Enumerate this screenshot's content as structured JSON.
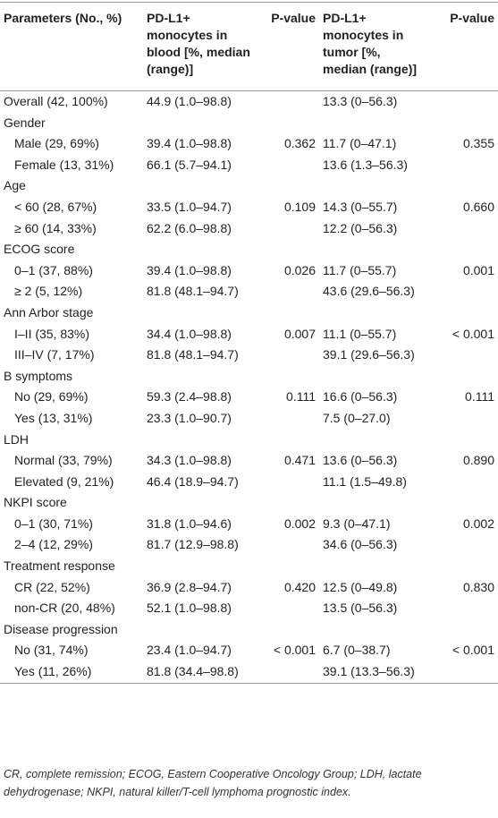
{
  "table": {
    "header": [
      "Parameters (No., %)",
      "PD-L1+ monocytes in blood [%, median (range)]",
      "P-value",
      "PD-L1+ monocytes in tumor [%, median (range)]",
      "P-value"
    ],
    "rows": [
      [
        "Overall (42, 100%)",
        "44.9 (1.0–98.8)",
        null,
        "13.3 (0–56.3)",
        null
      ],
      [
        "Gender"
      ],
      [
        "Male (29, 69%)",
        "39.4 (1.0–98.8)",
        "0.362",
        "11.7 (0–47.1)",
        "0.355"
      ],
      [
        "Female (13, 31%)",
        "66.1 (5.7–94.1)",
        null,
        "13.6 (1.3–56.3)",
        null
      ],
      [
        "Age"
      ],
      [
        "< 60 (28, 67%)",
        "33.5 (1.0–94.7)",
        "0.109",
        "14.3 (0–55.7)",
        "0.660"
      ],
      [
        "≥ 60 (14, 33%)",
        "62.2 (6.0–98.8)",
        null,
        "12.2 (0–56.3)",
        null
      ],
      [
        "ECOG score"
      ],
      [
        "0–1 (37, 88%)",
        "39.4 (1.0–98.8)",
        "0.026",
        "11.7 (0–55.7)",
        "0.001"
      ],
      [
        "≥ 2 (5, 12%)",
        "81.8 (48.1–94.7)",
        null,
        "43.6 (29.6–56.3)",
        null
      ],
      [
        "Ann Arbor stage"
      ],
      [
        "I–II (35, 83%)",
        "34.4 (1.0–98.8)",
        "0.007",
        "11.1 (0–55.7)",
        "< 0.001"
      ],
      [
        "III–IV (7, 17%)",
        "81.8 (48.1–94.7)",
        null,
        "39.1 (29.6–56.3)",
        null
      ],
      [
        "B symptoms"
      ],
      [
        "No (29, 69%)",
        "59.3 (2.4–98.8)",
        "0.111",
        "16.6 (0–56.3)",
        "0.111"
      ],
      [
        "Yes (13, 31%)",
        "23.3 (1.0–90.7)",
        null,
        "7.5 (0–27.0)",
        null
      ],
      [
        "LDH"
      ],
      [
        "Normal (33, 79%)",
        "34.3 (1.0–98.8)",
        "0.471",
        "13.6 (0–56.3)",
        "0.890"
      ],
      [
        "Elevated (9, 21%)",
        "46.4 (18.9–94.7)",
        null,
        "11.1 (1.5–49.8)",
        null
      ],
      [
        "NKPI score"
      ],
      [
        "0–1 (30, 71%)",
        "31.8 (1.0–94.6)",
        "0.002",
        "9.3 (0–47.1)",
        "0.002"
      ],
      [
        "2–4 (12, 29%)",
        "81.7 (12.9–98.8)",
        null,
        "34.6 (0–56.3)",
        null
      ],
      [
        "Treatment response"
      ],
      [
        "CR (22, 52%)",
        "36.9 (2.8–94.7)",
        "0.420",
        "12.5 (0–49.8)",
        "0.830"
      ],
      [
        "non-CR (20, 48%)",
        "52.1 (1.0–98.8)",
        null,
        "13.5 (0–56.3)",
        null
      ],
      [
        "Disease progression"
      ],
      [
        "No (31, 74%)",
        "23.4 (1.0–94.7)",
        "< 0.001",
        "6.7 (0–38.7)",
        "< 0.001"
      ],
      [
        "Yes (11, 26%)",
        "81.8 (34.4–98.8)",
        null,
        "39.1 (13.3–56.3)",
        null
      ]
    ],
    "footnote": "CR, complete remission; ECOG, Eastern Cooperative Oncology Group; LDH, lactate dehydrogenase; NKPI, natural killer/T-cell lymphoma prognostic index."
  }
}
